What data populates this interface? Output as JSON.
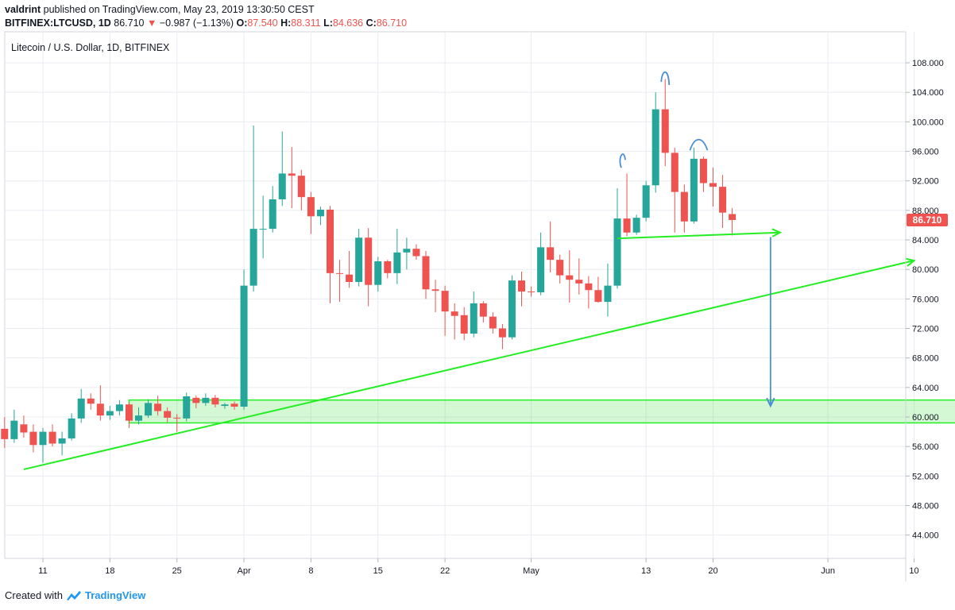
{
  "header": {
    "author": "valdrint",
    "published_text": "published on TradingView.com, May 23, 2019 13:30:50 CEST",
    "symbol": "BITFINEX:LTCUSD, 1D",
    "last": "86.710",
    "arrow": "▼",
    "change": "−0.987 (−1.13%)",
    "o_label": "O:",
    "o_value": "87.540",
    "h_label": "H:",
    "h_value": "88.311",
    "l_label": "L:",
    "l_value": "84.636",
    "c_label": "C:",
    "c_value": "86.710"
  },
  "footer": {
    "created_text": "Created with",
    "brand": "TradingView"
  },
  "colors": {
    "up": "#26a69a",
    "down": "#ef5350",
    "grid": "#e9ecf1",
    "trend": "#22ee22",
    "annot": "#4a8fd6",
    "axis_text": "#131722"
  },
  "chart_data": {
    "type": "candlestick",
    "title": "Litecoin / U.S. Dollar, 1D, BITFINEX",
    "ylim": [
      40,
      110
    ],
    "y_ticks": [
      "44.000",
      "48.000",
      "52.000",
      "56.000",
      "60.000",
      "64.000",
      "68.000",
      "72.000",
      "76.000",
      "80.000",
      "84.000",
      "88.000",
      "92.000",
      "96.000",
      "100.000",
      "104.000",
      "108.000"
    ],
    "x_ticks": [
      {
        "day": 11,
        "label": "11"
      },
      {
        "day": 18,
        "label": "18"
      },
      {
        "day": 25,
        "label": "25"
      },
      {
        "day": 32,
        "label": "Apr"
      },
      {
        "day": 39,
        "label": "8"
      },
      {
        "day": 46,
        "label": "15"
      },
      {
        "day": 53,
        "label": "22"
      },
      {
        "day": 62,
        "label": "May"
      },
      {
        "day": 74,
        "label": "13"
      },
      {
        "day": 81,
        "label": "20"
      },
      {
        "day": 93,
        "label": "Jun"
      },
      {
        "day": 102,
        "label": "10"
      }
    ],
    "last_price_label": "86.710",
    "candles": [
      {
        "d": 6,
        "o": 57.5,
        "h": 59,
        "l": 56.5,
        "c": 58.5
      },
      {
        "d": 7,
        "o": 58.4,
        "h": 60,
        "l": 55.8,
        "c": 57
      },
      {
        "d": 8,
        "o": 57,
        "h": 61,
        "l": 56.5,
        "c": 59.5
      },
      {
        "d": 9,
        "o": 59,
        "h": 60.2,
        "l": 57.2,
        "c": 57.9
      },
      {
        "d": 10,
        "o": 58,
        "h": 59,
        "l": 55.2,
        "c": 56.2
      },
      {
        "d": 11,
        "o": 56.2,
        "h": 58.5,
        "l": 53.8,
        "c": 58
      },
      {
        "d": 12,
        "o": 58,
        "h": 59,
        "l": 56,
        "c": 56.4
      },
      {
        "d": 13,
        "o": 56.4,
        "h": 58,
        "l": 54.8,
        "c": 57.1
      },
      {
        "d": 14,
        "o": 57.1,
        "h": 60.5,
        "l": 56.8,
        "c": 59.8
      },
      {
        "d": 15,
        "o": 59.8,
        "h": 63.8,
        "l": 59.2,
        "c": 62.5
      },
      {
        "d": 16,
        "o": 62.5,
        "h": 63.2,
        "l": 61,
        "c": 61.8
      },
      {
        "d": 17,
        "o": 61.8,
        "h": 64.3,
        "l": 59.5,
        "c": 60.2
      },
      {
        "d": 18,
        "o": 60.2,
        "h": 61.5,
        "l": 59.6,
        "c": 60.8
      },
      {
        "d": 19,
        "o": 60.8,
        "h": 62.3,
        "l": 60.2,
        "c": 61.7
      },
      {
        "d": 20,
        "o": 61.7,
        "h": 62,
        "l": 58.5,
        "c": 59.5
      },
      {
        "d": 21,
        "o": 59.5,
        "h": 61.3,
        "l": 59,
        "c": 60.2
      },
      {
        "d": 22,
        "o": 60.2,
        "h": 62.4,
        "l": 59.9,
        "c": 61.9
      },
      {
        "d": 23,
        "o": 61.8,
        "h": 62.9,
        "l": 60.2,
        "c": 60.8
      },
      {
        "d": 24,
        "o": 60.8,
        "h": 61.3,
        "l": 59.3,
        "c": 59.9
      },
      {
        "d": 25,
        "o": 59.9,
        "h": 60.4,
        "l": 58,
        "c": 59.8
      },
      {
        "d": 26,
        "o": 59.8,
        "h": 63.3,
        "l": 59.4,
        "c": 62.8
      },
      {
        "d": 27,
        "o": 62.6,
        "h": 62.9,
        "l": 61.2,
        "c": 61.9
      },
      {
        "d": 28,
        "o": 61.9,
        "h": 63.2,
        "l": 61.5,
        "c": 62.6
      },
      {
        "d": 29,
        "o": 62.6,
        "h": 63,
        "l": 61.3,
        "c": 61.7
      },
      {
        "d": 30,
        "o": 61.5,
        "h": 61.9,
        "l": 61.1,
        "c": 61.7
      },
      {
        "d": 31,
        "o": 61.8,
        "h": 62.1,
        "l": 61,
        "c": 61.4
      },
      {
        "d": 32,
        "o": 61.4,
        "h": 80,
        "l": 61,
        "c": 77.8
      },
      {
        "d": 33,
        "o": 77.8,
        "h": 99.5,
        "l": 77,
        "c": 85.5
      },
      {
        "d": 34,
        "o": 85.5,
        "h": 90,
        "l": 81.5,
        "c": 85.5
      },
      {
        "d": 35,
        "o": 85.5,
        "h": 91.3,
        "l": 85,
        "c": 89.5
      },
      {
        "d": 36,
        "o": 89.5,
        "h": 98.7,
        "l": 88.6,
        "c": 93
      },
      {
        "d": 37,
        "o": 93,
        "h": 96.6,
        "l": 88.3,
        "c": 92.7
      },
      {
        "d": 38,
        "o": 92.7,
        "h": 93.5,
        "l": 88,
        "c": 89.8
      },
      {
        "d": 39,
        "o": 89.8,
        "h": 90.5,
        "l": 84.8,
        "c": 87.2
      },
      {
        "d": 40,
        "o": 87.2,
        "h": 88.5,
        "l": 86,
        "c": 88.1
      },
      {
        "d": 41,
        "o": 88.1,
        "h": 88.6,
        "l": 75.4,
        "c": 79.5
      },
      {
        "d": 42,
        "o": 79.5,
        "h": 81.3,
        "l": 75.6,
        "c": 79.4
      },
      {
        "d": 43,
        "o": 79.3,
        "h": 82.5,
        "l": 77.5,
        "c": 78.3
      },
      {
        "d": 44,
        "o": 78.3,
        "h": 85.5,
        "l": 77.7,
        "c": 84.3
      },
      {
        "d": 45,
        "o": 84.3,
        "h": 85.6,
        "l": 75,
        "c": 77.9
      },
      {
        "d": 46,
        "o": 77.9,
        "h": 81.7,
        "l": 77,
        "c": 81.1
      },
      {
        "d": 47,
        "o": 81.1,
        "h": 81.3,
        "l": 78.8,
        "c": 79.5
      },
      {
        "d": 48,
        "o": 79.5,
        "h": 85.5,
        "l": 78,
        "c": 82.3
      },
      {
        "d": 49,
        "o": 82.3,
        "h": 84.3,
        "l": 80,
        "c": 82.8
      },
      {
        "d": 50,
        "o": 82.8,
        "h": 83.4,
        "l": 81.3,
        "c": 81.8
      },
      {
        "d": 51,
        "o": 81.8,
        "h": 82.5,
        "l": 76,
        "c": 77.3
      },
      {
        "d": 52,
        "o": 77.3,
        "h": 78.6,
        "l": 74.2,
        "c": 77.1
      },
      {
        "d": 53,
        "o": 77.1,
        "h": 77.8,
        "l": 71,
        "c": 74.3
      },
      {
        "d": 54,
        "o": 74.3,
        "h": 75.4,
        "l": 70.5,
        "c": 73.7
      },
      {
        "d": 55,
        "o": 73.8,
        "h": 74.9,
        "l": 70.4,
        "c": 71.3
      },
      {
        "d": 56,
        "o": 71.3,
        "h": 77,
        "l": 70.8,
        "c": 75.4
      },
      {
        "d": 57,
        "o": 75.4,
        "h": 75.7,
        "l": 72.8,
        "c": 73.6
      },
      {
        "d": 58,
        "o": 73.6,
        "h": 74.2,
        "l": 71.3,
        "c": 72
      },
      {
        "d": 59,
        "o": 72,
        "h": 72.6,
        "l": 69.2,
        "c": 70.8
      },
      {
        "d": 60,
        "o": 70.8,
        "h": 79.2,
        "l": 70.5,
        "c": 78.5
      },
      {
        "d": 61,
        "o": 78.5,
        "h": 79.7,
        "l": 75,
        "c": 77
      },
      {
        "d": 62,
        "o": 77,
        "h": 77.7,
        "l": 76.3,
        "c": 76.9
      },
      {
        "d": 63,
        "o": 76.9,
        "h": 85,
        "l": 76.5,
        "c": 83
      },
      {
        "d": 64,
        "o": 83,
        "h": 86.5,
        "l": 79.6,
        "c": 81.3
      },
      {
        "d": 65,
        "o": 81.3,
        "h": 82,
        "l": 78.1,
        "c": 79.2
      },
      {
        "d": 66,
        "o": 79.2,
        "h": 82.6,
        "l": 75.5,
        "c": 78.6
      },
      {
        "d": 67,
        "o": 78.6,
        "h": 81.5,
        "l": 76.6,
        "c": 78.1
      },
      {
        "d": 68,
        "o": 78.1,
        "h": 79.1,
        "l": 74.7,
        "c": 77.2
      },
      {
        "d": 69,
        "o": 77.2,
        "h": 79,
        "l": 75.5,
        "c": 75.6
      },
      {
        "d": 70,
        "o": 75.6,
        "h": 80.8,
        "l": 73.6,
        "c": 77.8
      },
      {
        "d": 71,
        "o": 77.8,
        "h": 91,
        "l": 77.4,
        "c": 86.9
      },
      {
        "d": 72,
        "o": 86.9,
        "h": 93,
        "l": 84.5,
        "c": 85
      },
      {
        "d": 73,
        "o": 85,
        "h": 87.4,
        "l": 84.7,
        "c": 87
      },
      {
        "d": 74,
        "o": 87,
        "h": 92,
        "l": 86.5,
        "c": 91.4
      },
      {
        "d": 75,
        "o": 91.4,
        "h": 104,
        "l": 90.4,
        "c": 101.7
      },
      {
        "d": 76,
        "o": 101.7,
        "h": 105.8,
        "l": 94,
        "c": 95.8
      },
      {
        "d": 77,
        "o": 95.8,
        "h": 96.5,
        "l": 85,
        "c": 90.5
      },
      {
        "d": 78,
        "o": 90.5,
        "h": 91.5,
        "l": 85,
        "c": 86.5
      },
      {
        "d": 79,
        "o": 86.5,
        "h": 96.5,
        "l": 86.2,
        "c": 95
      },
      {
        "d": 80,
        "o": 95,
        "h": 95.3,
        "l": 90.5,
        "c": 91.7
      },
      {
        "d": 81,
        "o": 91.7,
        "h": 93.8,
        "l": 88.5,
        "c": 91.2
      },
      {
        "d": 82,
        "o": 91.2,
        "h": 92.8,
        "l": 85.6,
        "c": 87.7
      },
      {
        "d": 83,
        "o": 87.5,
        "h": 88.3,
        "l": 84.6,
        "c": 86.7
      }
    ],
    "annotations": {
      "support_zone": {
        "d1": 20,
        "d2": 110,
        "p1": 59.2,
        "p2": 62.3
      },
      "lower_trendline": {
        "d1": 9,
        "p1": 52.9,
        "d2": 102,
        "p2": 81.2
      },
      "neckline_arrow": {
        "d1": 71,
        "p1": 84.2,
        "d2": 88,
        "p2": 85
      },
      "target_arrow": {
        "d": 87,
        "p1": 84.4,
        "p2": 61.5
      },
      "shoulder_marks": [
        {
          "d": 71.5,
          "p": 95.5,
          "kind": "left"
        },
        {
          "d": 76,
          "p": 106.5,
          "kind": "head"
        },
        {
          "d": 79.5,
          "p": 97,
          "kind": "right"
        }
      ]
    }
  }
}
